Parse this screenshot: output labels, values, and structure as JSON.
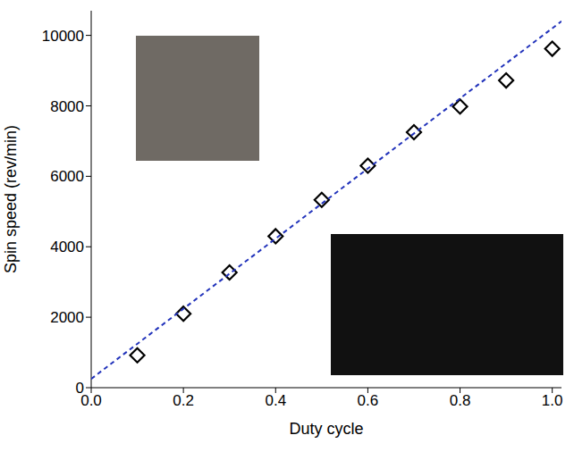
{
  "chart_data": {
    "type": "scatter",
    "x_label": "Duty cycle",
    "y_label": "Spin speed (rev/min)",
    "xlim": [
      0,
      1.02
    ],
    "ylim": [
      0,
      10700
    ],
    "xticks": [
      {
        "value": 0,
        "label": "0.0"
      },
      {
        "value": 0.2,
        "label": "0.2"
      },
      {
        "value": 0.4,
        "label": "0.4"
      },
      {
        "value": 0.6,
        "label": "0.6"
      },
      {
        "value": 0.8,
        "label": "0.8"
      },
      {
        "value": 1,
        "label": "1.0"
      }
    ],
    "yticks": [
      0,
      2000,
      4000,
      6000,
      8000,
      10000
    ],
    "grid": false,
    "series": [
      {
        "type": "scatter",
        "marker": "diamond",
        "color": "#000000",
        "x": [
          0.1,
          0.2,
          0.3,
          0.4,
          0.5,
          0.6,
          0.7,
          0.8,
          0.9,
          1.0
        ],
        "values": [
          920,
          2100,
          3270,
          4300,
          5330,
          6300,
          7250,
          7980,
          8720,
          9620
        ]
      },
      {
        "type": "line",
        "line_style": "dashed",
        "color": "#2233bb",
        "x": [
          0,
          1.02
        ],
        "values": [
          250,
          10400
        ]
      }
    ]
  }
}
